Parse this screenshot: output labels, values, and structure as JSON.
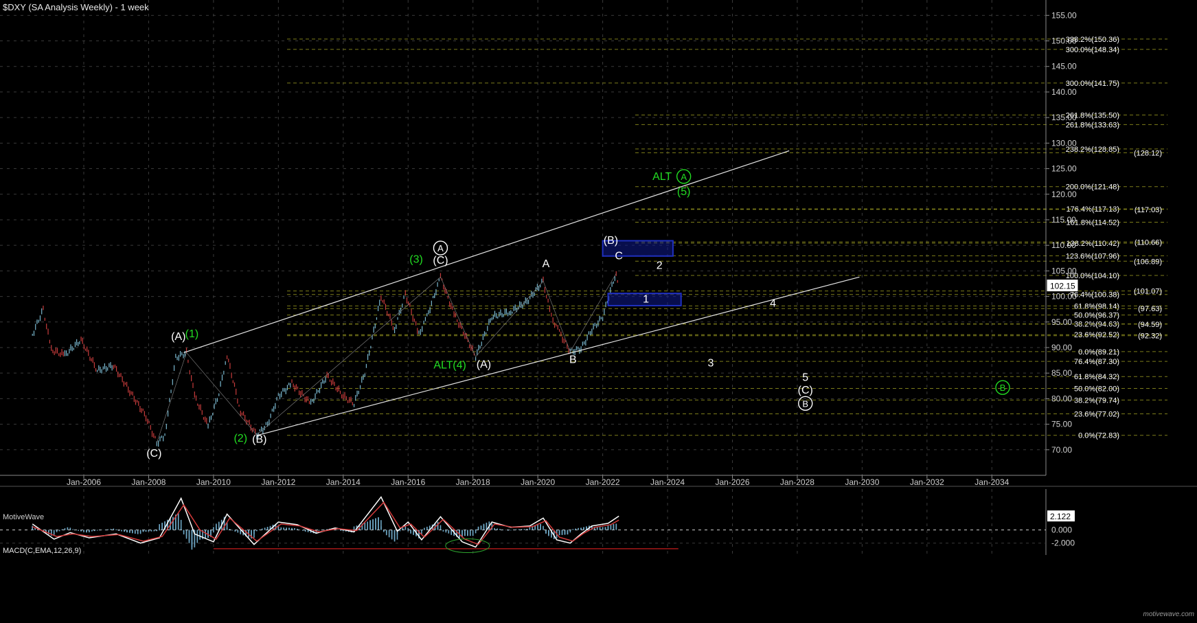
{
  "header": {
    "title": "$DXY (SA Analysis Weekly) - 1 week",
    "brand": "MotiveWave",
    "watermark": "motivewave.com"
  },
  "colors": {
    "background": "#000000",
    "grid": "#3a3a3a",
    "fib_line": "#7d7d1a",
    "channel": "#e6e6e6",
    "wave_white": "#ffffff",
    "wave_green": "#22dd22",
    "box": "#1f2fbf",
    "bar_up": "#7ab8cf",
    "bar_down": "#c83c3c",
    "macd_line": "#ffffff",
    "signal_line": "#d23a3a",
    "histogram": "#6fa8c6",
    "support_line": "#c81e1e"
  },
  "chart_data": [
    {
      "type": "line",
      "title": "$DXY (SA Analysis Weekly) - 1 week",
      "x_axis": {
        "ticks": [
          "Jan-2006",
          "Jan-2008",
          "Jan-2010",
          "Jan-2012",
          "Jan-2014",
          "Jan-2016",
          "Jan-2018",
          "Jan-2020",
          "Jan-2022",
          "Jan-2024",
          "Jan-2026",
          "Jan-2028",
          "Jan-2030",
          "Jan-2032",
          "Jan-2034"
        ],
        "range": [
          "2003-06",
          "2035-09"
        ]
      },
      "y_axis": {
        "ticks": [
          "155.00",
          "150.00",
          "145.00",
          "140.00",
          "135.00",
          "130.00",
          "125.00",
          "120.00",
          "115.00",
          "110.00",
          "105.00",
          "100.00",
          "95.00",
          "90.00",
          "85.00",
          "80.00",
          "75.00",
          "70.00"
        ],
        "range": [
          65,
          158
        ],
        "position": "right"
      },
      "grid": true,
      "last_price": "102.15",
      "series": [
        {
          "points": [
            {
              "x": "2004-06",
              "y": 92.5
            },
            {
              "x": "2004-10",
              "y": 97.5
            },
            {
              "x": "2005-01",
              "y": 89.5
            },
            {
              "x": "2005-06",
              "y": 88.5
            },
            {
              "x": "2005-12",
              "y": 91.5
            },
            {
              "x": "2006-06",
              "y": 85.5
            },
            {
              "x": "2006-12",
              "y": 86.5
            },
            {
              "x": "2007-06",
              "y": 81.5
            },
            {
              "x": "2007-12",
              "y": 76.5
            },
            {
              "x": "2008-04",
              "y": 71.3
            },
            {
              "x": "2008-07",
              "y": 72.8
            },
            {
              "x": "2008-11",
              "y": 88.0
            },
            {
              "x": "2009-03",
              "y": 89.0
            },
            {
              "x": "2009-06",
              "y": 80.5
            },
            {
              "x": "2009-11",
              "y": 74.6
            },
            {
              "x": "2010-03",
              "y": 81.0
            },
            {
              "x": "2010-06",
              "y": 88.5
            },
            {
              "x": "2010-11",
              "y": 77.5
            },
            {
              "x": "2011-05",
              "y": 72.9
            },
            {
              "x": "2011-09",
              "y": 75.0
            },
            {
              "x": "2012-01",
              "y": 80.5
            },
            {
              "x": "2012-06",
              "y": 83.0
            },
            {
              "x": "2013-01",
              "y": 79.0
            },
            {
              "x": "2013-07",
              "y": 84.5
            },
            {
              "x": "2014-01",
              "y": 80.5
            },
            {
              "x": "2014-05",
              "y": 79.0
            },
            {
              "x": "2014-09",
              "y": 85.0
            },
            {
              "x": "2015-03",
              "y": 100.0
            },
            {
              "x": "2015-08",
              "y": 93.5
            },
            {
              "x": "2015-12",
              "y": 100.5
            },
            {
              "x": "2016-05",
              "y": 92.6
            },
            {
              "x": "2016-08",
              "y": 96.0
            },
            {
              "x": "2017-01",
              "y": 103.8
            },
            {
              "x": "2017-06",
              "y": 96.5
            },
            {
              "x": "2017-10",
              "y": 92.5
            },
            {
              "x": "2018-02",
              "y": 88.2
            },
            {
              "x": "2018-08",
              "y": 96.0
            },
            {
              "x": "2019-03",
              "y": 97.0
            },
            {
              "x": "2019-09",
              "y": 99.0
            },
            {
              "x": "2020-03",
              "y": 103.0
            },
            {
              "x": "2020-06",
              "y": 96.0
            },
            {
              "x": "2020-09",
              "y": 93.0
            },
            {
              "x": "2021-01",
              "y": 89.2
            },
            {
              "x": "2021-05",
              "y": 89.8
            },
            {
              "x": "2021-09",
              "y": 93.5
            },
            {
              "x": "2022-01",
              "y": 96.0
            },
            {
              "x": "2022-05",
              "y": 103.0
            },
            {
              "x": "2022-06",
              "y": 104.5
            },
            {
              "x": "2022-07",
              "y": 102.2
            }
          ]
        }
      ],
      "fib_levels": [
        {
          "label": "338.2%(150.36)",
          "value": 150.36
        },
        {
          "label": "300.0%(148.34)",
          "value": 148.34
        },
        {
          "label": "300.0%(141.75)",
          "value": 141.75
        },
        {
          "label": "261.8%(135.50)",
          "value": 135.5
        },
        {
          "label": "261.8%(133.63)",
          "value": 133.63
        },
        {
          "label": "238.2%(128.85)",
          "value": 128.85
        },
        {
          "label": "(128.12)",
          "value": 128.12
        },
        {
          "label": "200.0%(121.48)",
          "value": 121.48
        },
        {
          "label": "176.4%(117.13)",
          "value": 117.13
        },
        {
          "label": "(117.03)",
          "value": 117.03
        },
        {
          "label": "161.8%(114.52)",
          "value": 114.52
        },
        {
          "label": "138.2%(110.42)",
          "value": 110.42
        },
        {
          "label": "(110.66)",
          "value": 110.66
        },
        {
          "label": "123.6%(107.96)",
          "value": 107.96
        },
        {
          "label": "(106.89)",
          "value": 106.89
        },
        {
          "label": "100.0%(104.10)",
          "value": 104.1
        },
        {
          "label": "76.4%(100.38)",
          "value": 100.38
        },
        {
          "label": "(101.07)",
          "value": 101.07
        },
        {
          "label": "61.8%(98.14)",
          "value": 98.14
        },
        {
          "label": "(97.63)",
          "value": 97.63
        },
        {
          "label": "50.0%(96.37)",
          "value": 96.37
        },
        {
          "label": "38.2%(94.63)",
          "value": 94.63
        },
        {
          "label": "(94.59)",
          "value": 94.59
        },
        {
          "label": "23.6%(92.52)",
          "value": 92.52
        },
        {
          "label": "(92.32)",
          "value": 92.32
        },
        {
          "label": "0.0%(89.21)",
          "value": 89.21
        },
        {
          "label": "76.4%(87.30)",
          "value": 87.3
        },
        {
          "label": "61.8%(84.32)",
          "value": 84.32
        },
        {
          "label": "50.0%(82.00)",
          "value": 82.0
        },
        {
          "label": "38.2%(79.74)",
          "value": 79.74
        },
        {
          "label": "23.6%(77.02)",
          "value": 77.02
        },
        {
          "label": "0.0%(72.83)",
          "value": 72.83
        }
      ],
      "channel": [
        {
          "name": "upper",
          "from": {
            "x": "2009-02",
            "y": 89.0
          },
          "to": {
            "x": "2027-10",
            "y": 128.5
          }
        },
        {
          "name": "lower",
          "from": {
            "x": "2011-05",
            "y": 72.8
          },
          "to": {
            "x": "2029-12",
            "y": 103.8
          }
        }
      ],
      "target_boxes": [
        {
          "name": "upper-box",
          "x_from": "2022-01",
          "x_to": "2024-03",
          "y_from": 107.9,
          "y_to": 110.9
        },
        {
          "name": "lower-box",
          "x_from": "2022-03",
          "x_to": "2024-06",
          "y_from": 98.2,
          "y_to": 100.6
        }
      ],
      "wave_labels": [
        {
          "text": "(A)",
          "x": "2008-12",
          "y": 91.5,
          "color": "white"
        },
        {
          "text": "(1)",
          "x": "2009-05",
          "y": 92.0,
          "color": "green"
        },
        {
          "text": "(C)",
          "x": "2008-03",
          "y": 68.6,
          "color": "white"
        },
        {
          "text": "(2)",
          "x": "2010-11",
          "y": 71.6,
          "color": "green"
        },
        {
          "text": "(B)",
          "x": "2011-06",
          "y": 71.4,
          "color": "white"
        },
        {
          "text": "(3)",
          "x": "2016-04",
          "y": 106.6,
          "color": "green"
        },
        {
          "text": "A",
          "x": "2017-01",
          "y": 108.8,
          "color": "white",
          "circled": true
        },
        {
          "text": "(C)",
          "x": "2017-01",
          "y": 106.4,
          "color": "white"
        },
        {
          "text": "ALT",
          "x": "2017-02",
          "y": 85.9,
          "color": "green"
        },
        {
          "text": "(4)",
          "x": "2017-08",
          "y": 85.9,
          "color": "green"
        },
        {
          "text": "(A)",
          "x": "2018-05",
          "y": 86.0,
          "color": "white"
        },
        {
          "text": "A",
          "x": "2020-04",
          "y": 105.7,
          "color": "white"
        },
        {
          "text": "B",
          "x": "2021-02",
          "y": 87.0,
          "color": "white"
        },
        {
          "text": "(B)",
          "x": "2022-04",
          "y": 110.3,
          "color": "white"
        },
        {
          "text": "C",
          "x": "2022-07",
          "y": 107.3,
          "color": "white"
        },
        {
          "text": "2",
          "x": "2023-10",
          "y": 105.4,
          "color": "white"
        },
        {
          "text": "1",
          "x": "2023-05",
          "y": 98.8,
          "color": "white"
        },
        {
          "text": "ALT",
          "x": "2023-11",
          "y": 122.8,
          "color": "green"
        },
        {
          "text": "A",
          "x": "2024-07",
          "y": 122.8,
          "color": "green",
          "circled": true
        },
        {
          "text": "(5)",
          "x": "2024-07",
          "y": 119.8,
          "color": "green"
        },
        {
          "text": "4",
          "x": "2027-04",
          "y": 98.0,
          "color": "white"
        },
        {
          "text": "3",
          "x": "2025-05",
          "y": 86.3,
          "color": "white"
        },
        {
          "text": "5",
          "x": "2028-04",
          "y": 83.5,
          "color": "white"
        },
        {
          "text": "(C)",
          "x": "2028-04",
          "y": 81.0,
          "color": "white"
        },
        {
          "text": "B",
          "x": "2028-04",
          "y": 78.4,
          "color": "white",
          "circled": true
        },
        {
          "text": "B",
          "x": "2034-05",
          "y": 81.5,
          "color": "green",
          "circled": true
        }
      ]
    },
    {
      "type": "line",
      "title": "MACD(C,EMA,12,26,9)",
      "y_axis": {
        "ticks": [
          "0.000",
          "-2.000"
        ],
        "range": [
          -3.8,
          6.2
        ]
      },
      "last_value": "2.122",
      "series": [
        {
          "name": "MACD",
          "points": [
            {
              "x": "2004-06",
              "y": 0.9
            },
            {
              "x": "2005-02",
              "y": -1.4
            },
            {
              "x": "2005-08",
              "y": -0.4
            },
            {
              "x": "2006-03",
              "y": -1.2
            },
            {
              "x": "2007-01",
              "y": -0.6
            },
            {
              "x": "2007-10",
              "y": -2.0
            },
            {
              "x": "2008-05",
              "y": -1.2
            },
            {
              "x": "2009-01",
              "y": 4.8
            },
            {
              "x": "2009-06",
              "y": -0.6
            },
            {
              "x": "2010-01",
              "y": -1.8
            },
            {
              "x": "2010-06",
              "y": 2.4
            },
            {
              "x": "2011-04",
              "y": -2.2
            },
            {
              "x": "2012-01",
              "y": 1.2
            },
            {
              "x": "2012-08",
              "y": 0.8
            },
            {
              "x": "2013-03",
              "y": -0.5
            },
            {
              "x": "2013-10",
              "y": 0.3
            },
            {
              "x": "2014-05",
              "y": -0.3
            },
            {
              "x": "2015-03",
              "y": 5.0
            },
            {
              "x": "2015-09",
              "y": -0.2
            },
            {
              "x": "2016-01",
              "y": 1.2
            },
            {
              "x": "2016-06",
              "y": -1.5
            },
            {
              "x": "2017-01",
              "y": 2.0
            },
            {
              "x": "2017-09",
              "y": -1.8
            },
            {
              "x": "2018-02",
              "y": -2.6
            },
            {
              "x": "2018-08",
              "y": 1.2
            },
            {
              "x": "2019-03",
              "y": 0.4
            },
            {
              "x": "2019-10",
              "y": 0.6
            },
            {
              "x": "2020-03",
              "y": 1.8
            },
            {
              "x": "2020-08",
              "y": -1.5
            },
            {
              "x": "2021-01",
              "y": -2.0
            },
            {
              "x": "2021-05",
              "y": -0.6
            },
            {
              "x": "2021-09",
              "y": 0.6
            },
            {
              "x": "2022-03",
              "y": 1.0
            },
            {
              "x": "2022-07",
              "y": 2.1
            }
          ]
        },
        {
          "name": "Signal",
          "points": [
            {
              "x": "2004-06",
              "y": 0.5
            },
            {
              "x": "2005-03",
              "y": -1.0
            },
            {
              "x": "2005-09",
              "y": -0.6
            },
            {
              "x": "2006-04",
              "y": -1.0
            },
            {
              "x": "2007-02",
              "y": -0.7
            },
            {
              "x": "2007-11",
              "y": -1.7
            },
            {
              "x": "2008-06",
              "y": -1.0
            },
            {
              "x": "2009-02",
              "y": 3.8
            },
            {
              "x": "2009-08",
              "y": 0.0
            },
            {
              "x": "2010-02",
              "y": -1.4
            },
            {
              "x": "2010-07",
              "y": 1.8
            },
            {
              "x": "2011-05",
              "y": -1.7
            },
            {
              "x": "2012-02",
              "y": 0.9
            },
            {
              "x": "2012-09",
              "y": 0.6
            },
            {
              "x": "2013-04",
              "y": -0.3
            },
            {
              "x": "2013-11",
              "y": 0.2
            },
            {
              "x": "2014-06",
              "y": -0.1
            },
            {
              "x": "2015-04",
              "y": 4.2
            },
            {
              "x": "2015-10",
              "y": 0.3
            },
            {
              "x": "2016-02",
              "y": 0.9
            },
            {
              "x": "2016-07",
              "y": -1.1
            },
            {
              "x": "2017-02",
              "y": 1.6
            },
            {
              "x": "2017-10",
              "y": -1.4
            },
            {
              "x": "2018-03",
              "y": -2.2
            },
            {
              "x": "2018-09",
              "y": 0.9
            },
            {
              "x": "2019-04",
              "y": 0.4
            },
            {
              "x": "2019-11",
              "y": 0.5
            },
            {
              "x": "2020-04",
              "y": 1.4
            },
            {
              "x": "2020-09",
              "y": -1.1
            },
            {
              "x": "2021-02",
              "y": -1.7
            },
            {
              "x": "2021-06",
              "y": -0.5
            },
            {
              "x": "2021-10",
              "y": 0.4
            },
            {
              "x": "2022-04",
              "y": 0.8
            },
            {
              "x": "2022-07",
              "y": 1.5
            }
          ]
        }
      ],
      "support_line": {
        "from": {
          "x": "2010-01",
          "y": -2.85
        },
        "to": {
          "x": "2024-05",
          "y": -2.85
        }
      }
    }
  ]
}
